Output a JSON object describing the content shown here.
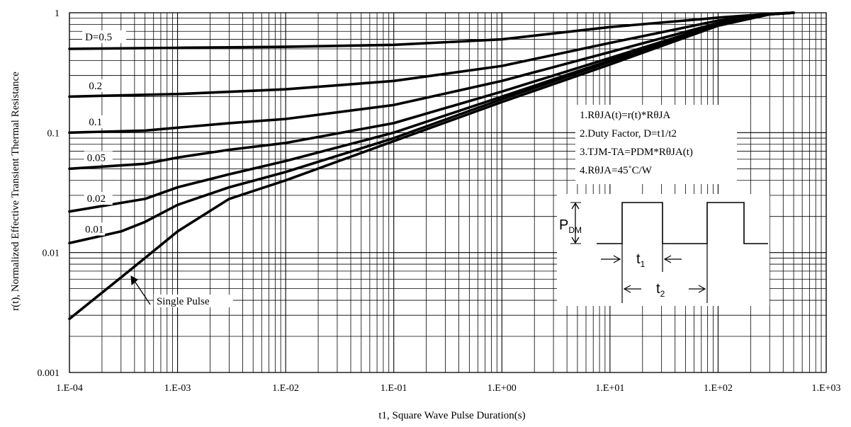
{
  "chart_data": {
    "type": "line",
    "xlabel": "t1, Square Wave Pulse Duration(s)",
    "ylabel": "r(t), Normalized Effective Transient Thermal Resistance",
    "xscale": "log",
    "yscale": "log",
    "xlim": [
      0.0001,
      1000
    ],
    "ylim": [
      0.001,
      1
    ],
    "grid": true,
    "x_tick_labels": [
      "1.E-04",
      "1.E-03",
      "1.E-02",
      "1.E-01",
      "1.E+00",
      "1.E+01",
      "1.E+02",
      "1.E+03"
    ],
    "y_tick_labels": [
      "0.001",
      "0.01",
      "0.1",
      "1"
    ],
    "series": [
      {
        "name": "D=0.5",
        "x": [
          0.0001,
          0.001,
          0.01,
          0.1,
          1,
          10,
          100,
          300,
          500
        ],
        "y": [
          0.5,
          0.51,
          0.52,
          0.54,
          0.6,
          0.76,
          0.91,
          0.98,
          1.0
        ]
      },
      {
        "name": "0.2",
        "x": [
          0.0001,
          0.001,
          0.01,
          0.1,
          1,
          10,
          100,
          300,
          500
        ],
        "y": [
          0.2,
          0.21,
          0.23,
          0.27,
          0.36,
          0.56,
          0.86,
          0.98,
          1.0
        ]
      },
      {
        "name": "0.1",
        "x": [
          0.0001,
          0.0005,
          0.001,
          0.003,
          0.01,
          0.1,
          1,
          10,
          100,
          300,
          500
        ],
        "y": [
          0.1,
          0.104,
          0.11,
          0.12,
          0.13,
          0.17,
          0.27,
          0.47,
          0.82,
          0.97,
          1.0
        ]
      },
      {
        "name": "0.05",
        "x": [
          0.0001,
          0.0005,
          0.001,
          0.003,
          0.01,
          0.1,
          1,
          10,
          100,
          300,
          500
        ],
        "y": [
          0.05,
          0.055,
          0.062,
          0.072,
          0.082,
          0.12,
          0.22,
          0.42,
          0.8,
          0.97,
          1.0
        ]
      },
      {
        "name": "0.02",
        "x": [
          0.0001,
          0.0005,
          0.001,
          0.003,
          0.01,
          0.1,
          1,
          10,
          100,
          300,
          500
        ],
        "y": [
          0.022,
          0.028,
          0.035,
          0.045,
          0.058,
          0.1,
          0.2,
          0.4,
          0.8,
          0.97,
          1.0
        ]
      },
      {
        "name": "0.01",
        "x": [
          0.0001,
          0.0003,
          0.0005,
          0.001,
          0.003,
          0.01,
          0.1,
          1,
          10,
          100,
          300,
          500
        ],
        "y": [
          0.012,
          0.015,
          0.018,
          0.025,
          0.035,
          0.047,
          0.09,
          0.19,
          0.39,
          0.79,
          0.97,
          1.0
        ]
      },
      {
        "name": "Single Pulse",
        "x": [
          0.0001,
          0.0003,
          0.0005,
          0.001,
          0.003,
          0.01,
          0.1,
          1,
          10,
          100,
          300,
          500
        ],
        "y": [
          0.0028,
          0.0062,
          0.009,
          0.015,
          0.028,
          0.04,
          0.085,
          0.18,
          0.37,
          0.78,
          0.97,
          1.0
        ]
      }
    ],
    "curve_labels": [
      {
        "text": "D=0.5",
        "series": 0
      },
      {
        "text": "0.2",
        "series": 1
      },
      {
        "text": "0.1",
        "series": 2
      },
      {
        "text": "0.05",
        "series": 3
      },
      {
        "text": "0.02",
        "series": 4
      },
      {
        "text": "0.01",
        "series": 5
      },
      {
        "text": "Single Pulse",
        "series": 6
      }
    ],
    "notes": [
      "1.RθJA(t)=r(t)*RθJA",
      "2.Duty Factor, D=t1/t2",
      "3.TJM-TA=PDM*RθJA(t)",
      "4.RθJA=45˚C/W"
    ],
    "inset": {
      "pdm_main": "P",
      "pdm_sub": "DM",
      "t1_main": "t",
      "t1_sub": "1",
      "t2_main": "t",
      "t2_sub": "2"
    }
  }
}
